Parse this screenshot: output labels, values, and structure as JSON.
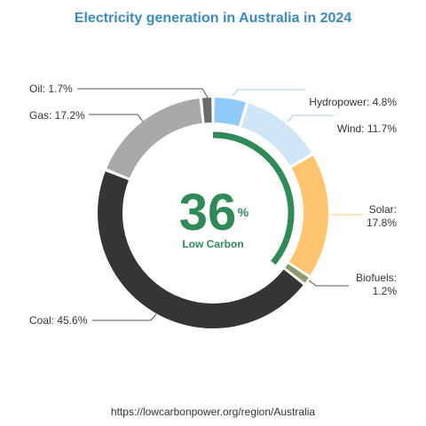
{
  "chart_data": {
    "type": "pie",
    "title": "Electricity generation in Australia in 2024",
    "slices": [
      {
        "name": "Hydropower",
        "value": 4.8,
        "color": "#90caf9",
        "label_lines": [
          "Hydropower: 4.8%"
        ]
      },
      {
        "name": "Wind",
        "value": 11.7,
        "color": "#cfe6f7",
        "label_lines": [
          "Wind: 11.7%"
        ]
      },
      {
        "name": "Solar",
        "value": 17.8,
        "color": "#ffc46e",
        "label_lines": [
          "Solar:",
          "17.8%"
        ]
      },
      {
        "name": "Biofuels",
        "value": 1.2,
        "color": "#8a9a6e",
        "label_lines": [
          "Biofuels:",
          "1.2%"
        ]
      },
      {
        "name": "Coal",
        "value": 45.6,
        "color": "#353535",
        "label_lines": [
          "Coal: 45.6%"
        ]
      },
      {
        "name": "Gas",
        "value": 17.2,
        "color": "#a9a9a9",
        "label_lines": [
          "Gas: 17.2%"
        ]
      },
      {
        "name": "Oil",
        "value": 1.7,
        "color": "#6b6b6b",
        "label_lines": [
          "Oil: 1.7%"
        ]
      }
    ],
    "center": {
      "value": "36",
      "unit": "%",
      "label": "Low Carbon",
      "fraction": 0.36,
      "color": "#2e8b57"
    },
    "title_color": "#3a8bc2",
    "source": "https://lowcarbonpower.org/region/Australia"
  }
}
